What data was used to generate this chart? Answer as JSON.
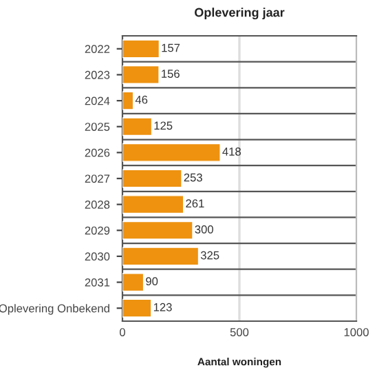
{
  "chart_data": {
    "type": "bar",
    "orientation": "horizontal",
    "title": "Oplevering jaar",
    "xlabel": "Aantal woningen",
    "categories": [
      "2022",
      "2023",
      "2024",
      "2025",
      "2026",
      "2027",
      "2028",
      "2029",
      "2030",
      "2031",
      "Oplevering Onbekend"
    ],
    "values": [
      157,
      156,
      46,
      125,
      418,
      253,
      261,
      300,
      325,
      90,
      123
    ],
    "color": "#ee9210",
    "xlim": [
      0,
      1000
    ],
    "xticks": [
      0,
      500,
      1000
    ],
    "ref_lines": [
      {
        "axis": "x",
        "value": 500,
        "color": "#dddddd"
      }
    ],
    "data_labels": true
  }
}
